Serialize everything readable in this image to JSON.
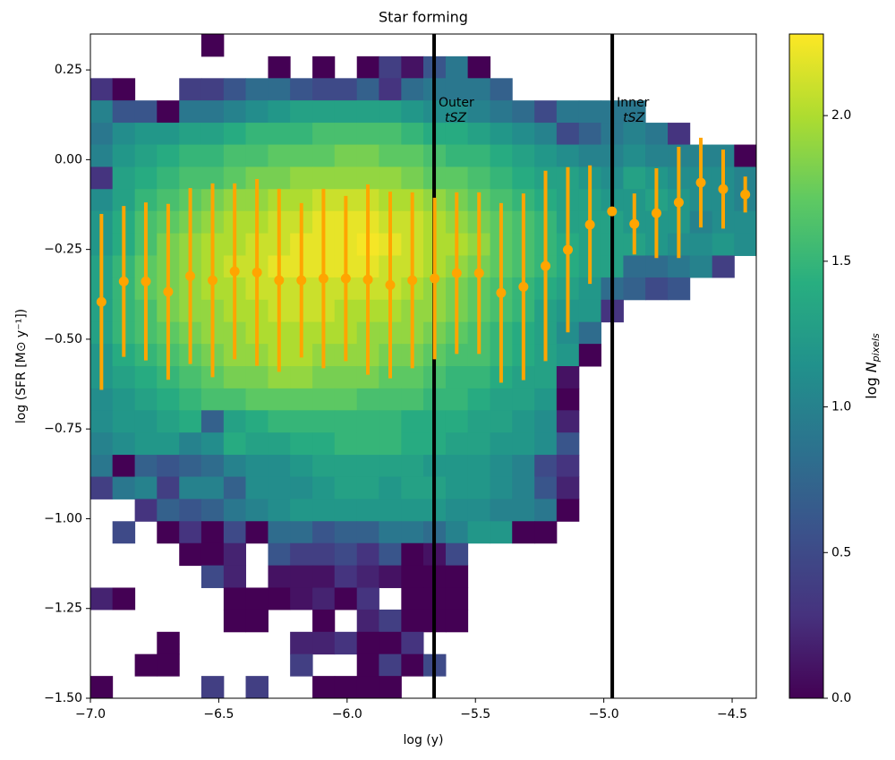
{
  "chart_data": {
    "type": "heatmap",
    "title": "Star forming",
    "xlabel": "log (y)",
    "ylabel": "log (SFR [M⊙ y⁻¹])",
    "xlim": [
      -7.0,
      -4.406
    ],
    "ylim": [
      -1.5,
      0.35
    ],
    "xticks": [
      {
        "value": -7.0,
        "label": "−7.0"
      },
      {
        "value": -6.5,
        "label": "−6.5"
      },
      {
        "value": -6.0,
        "label": "−6.0"
      },
      {
        "value": -5.5,
        "label": "−5.5"
      },
      {
        "value": -5.0,
        "label": "−5.0"
      },
      {
        "value": -4.5,
        "label": "−4.5"
      }
    ],
    "yticks": [
      {
        "value": 0.25,
        "label": "0.25"
      },
      {
        "value": 0,
        "label": "0.00"
      },
      {
        "value": -0.25,
        "label": "−0.25"
      },
      {
        "value": -0.5,
        "label": "−0.50"
      },
      {
        "value": -0.75,
        "label": "−0.75"
      },
      {
        "value": -1.0,
        "label": "−1.00"
      },
      {
        "value": -1.25,
        "label": "−1.25"
      },
      {
        "value": -1.5,
        "label": "−1.50"
      }
    ],
    "colormap": "viridis",
    "xbins": [
      -7.0,
      -6.914,
      -6.827,
      -6.741,
      -6.654,
      -6.568,
      -6.481,
      -6.395,
      -6.308,
      -6.222,
      -6.135,
      -6.049,
      -5.962,
      -5.876,
      -5.789,
      -5.703,
      -5.616,
      -5.53,
      -5.443,
      -5.357,
      -5.27,
      -5.184,
      -5.097,
      -5.011,
      -4.924,
      -4.838,
      -4.751,
      -4.665,
      -4.578,
      -4.492,
      -4.406
    ],
    "ybins": [
      0.35,
      0.288,
      0.227,
      0.165,
      0.103,
      0.042,
      -0.02,
      -0.082,
      -0.143,
      -0.205,
      -0.267,
      -0.328,
      -0.39,
      -0.452,
      -0.513,
      -0.575,
      -0.637,
      -0.698,
      -0.76,
      -0.822,
      -0.883,
      -0.945,
      -1.007,
      -1.068,
      -1.13,
      -1.192,
      -1.253,
      -1.315,
      -1.377,
      -1.438,
      -1.5
    ],
    "z": [
      [
        null,
        null,
        null,
        null,
        null,
        0,
        null,
        null,
        null,
        null,
        null,
        null,
        null,
        null,
        null,
        null,
        null,
        null,
        null,
        null,
        null,
        null,
        null,
        null,
        null,
        null,
        null,
        null,
        null,
        null
      ],
      [
        null,
        null,
        null,
        null,
        null,
        null,
        null,
        null,
        0,
        null,
        0,
        null,
        0,
        0.4,
        0.1,
        0.6,
        0.9,
        0,
        null,
        null,
        null,
        null,
        null,
        null,
        null,
        null,
        null,
        null,
        null,
        null
      ],
      [
        0.3,
        0,
        null,
        null,
        0.4,
        0.4,
        0.6,
        0.8,
        0.8,
        0.6,
        0.5,
        0.5,
        0.7,
        0.3,
        0.8,
        0.9,
        0.9,
        0.9,
        0.7,
        null,
        null,
        null,
        null,
        null,
        null,
        null,
        null,
        null,
        null,
        null
      ],
      [
        1.0,
        0.6,
        0.6,
        0,
        0.9,
        0.9,
        1.0,
        1.1,
        1.2,
        1.3,
        1.3,
        1.3,
        1.3,
        1.3,
        1.2,
        1.1,
        1.1,
        1.0,
        0.9,
        0.8,
        0.5,
        0.9,
        0.9,
        0.9,
        0.9,
        null,
        null,
        null,
        null,
        null
      ],
      [
        0.9,
        1.1,
        1.2,
        1.2,
        1.3,
        1.3,
        1.4,
        1.5,
        1.5,
        1.5,
        1.6,
        1.6,
        1.6,
        1.6,
        1.5,
        1.4,
        1.4,
        1.3,
        1.2,
        1.1,
        1.0,
        0.5,
        0.7,
        0.9,
        1.0,
        0.9,
        0.3,
        null,
        null,
        null
      ],
      [
        1.0,
        1.2,
        1.3,
        1.4,
        1.5,
        1.5,
        1.6,
        1.6,
        1.7,
        1.7,
        1.7,
        1.8,
        1.8,
        1.7,
        1.7,
        1.6,
        1.5,
        1.5,
        1.4,
        1.3,
        1.2,
        1.1,
        1.0,
        1.0,
        1.1,
        1.0,
        1.0,
        1.0,
        1.0,
        0.0
      ],
      [
        0.3,
        1.3,
        1.4,
        1.5,
        1.6,
        1.6,
        1.7,
        1.8,
        1.8,
        1.9,
        1.9,
        1.9,
        1.9,
        1.9,
        1.8,
        1.7,
        1.7,
        1.6,
        1.5,
        1.4,
        1.3,
        1.3,
        1.2,
        1.1,
        1.3,
        1.2,
        1.1,
        1.1,
        1.1,
        1.0
      ],
      [
        1.1,
        1.3,
        1.5,
        1.6,
        1.7,
        1.8,
        1.9,
        1.9,
        2.0,
        2.0,
        2.1,
        2.1,
        2.1,
        2.0,
        2.0,
        1.9,
        1.8,
        1.7,
        1.6,
        1.5,
        1.4,
        1.3,
        1.3,
        1.2,
        1.2,
        1.3,
        1.2,
        1.1,
        1.1,
        1.0
      ],
      [
        1.2,
        1.4,
        1.6,
        1.7,
        1.8,
        1.9,
        2.0,
        2.0,
        2.1,
        2.1,
        2.2,
        2.2,
        2.2,
        2.1,
        2.1,
        2.0,
        1.9,
        1.8,
        1.7,
        1.6,
        1.5,
        1.3,
        1.3,
        1.3,
        1.2,
        1.2,
        1.2,
        1.0,
        1.1,
        1.1
      ],
      [
        1.2,
        1.4,
        1.6,
        1.8,
        1.9,
        2.0,
        2.0,
        2.1,
        2.1,
        2.2,
        2.2,
        2.2,
        2.25,
        2.2,
        2.1,
        2.0,
        2.0,
        1.9,
        1.7,
        1.6,
        1.5,
        1.4,
        1.3,
        1.3,
        1.3,
        1.2,
        1.1,
        1.1,
        1.2,
        1.1
      ],
      [
        1.3,
        1.5,
        1.7,
        1.8,
        1.9,
        2.0,
        2.1,
        2.1,
        2.2,
        2.2,
        2.2,
        2.2,
        2.2,
        2.1,
        2.1,
        2.0,
        1.9,
        1.8,
        1.7,
        1.6,
        1.5,
        1.4,
        1.3,
        1.3,
        0.8,
        0.8,
        0.9,
        1.0,
        0.4,
        null
      ],
      [
        1.3,
        1.5,
        1.7,
        1.8,
        1.9,
        2.0,
        2.0,
        2.1,
        2.1,
        2.1,
        2.1,
        2.1,
        2.1,
        2.1,
        2.0,
        1.9,
        1.8,
        1.7,
        1.6,
        1.5,
        1.4,
        1.3,
        1.2,
        0.8,
        0.7,
        0.5,
        0.6,
        null,
        null,
        null
      ],
      [
        1.3,
        1.5,
        1.6,
        1.8,
        1.9,
        1.9,
        2.0,
        2.0,
        2.1,
        2.1,
        2.1,
        2.0,
        2.0,
        2.0,
        1.9,
        1.9,
        1.8,
        1.7,
        1.6,
        1.5,
        1.3,
        1.2,
        1.2,
        0.3,
        null,
        null,
        null,
        null,
        null,
        null
      ],
      [
        1.3,
        1.5,
        1.6,
        1.7,
        1.8,
        1.9,
        1.9,
        2.0,
        2.0,
        2.0,
        2.0,
        2.0,
        1.9,
        1.9,
        1.9,
        1.8,
        1.7,
        1.6,
        1.5,
        1.4,
        1.3,
        1.1,
        0.8,
        null,
        null,
        null,
        null,
        null,
        null,
        null
      ],
      [
        1.2,
        1.4,
        1.5,
        1.6,
        1.7,
        1.8,
        1.9,
        1.9,
        2.0,
        2.0,
        1.9,
        1.9,
        1.9,
        1.8,
        1.8,
        1.7,
        1.6,
        1.6,
        1.5,
        1.4,
        1.3,
        1.2,
        0.0,
        null,
        null,
        null,
        null,
        null,
        null,
        null
      ],
      [
        1.2,
        1.3,
        1.4,
        1.5,
        1.6,
        1.7,
        1.8,
        1.8,
        1.9,
        1.9,
        1.8,
        1.8,
        1.8,
        1.7,
        1.7,
        1.6,
        1.5,
        1.5,
        1.4,
        1.3,
        1.3,
        0.1,
        null,
        null,
        null,
        null,
        null,
        null,
        null,
        null
      ],
      [
        1.1,
        1.2,
        1.3,
        1.4,
        1.5,
        1.6,
        1.6,
        1.7,
        1.7,
        1.7,
        1.7,
        1.7,
        1.6,
        1.6,
        1.6,
        1.5,
        1.5,
        1.4,
        1.3,
        1.3,
        1.2,
        0.0,
        null,
        null,
        null,
        null,
        null,
        null,
        null,
        null
      ],
      [
        1.1,
        1.2,
        1.2,
        1.3,
        1.4,
        0.7,
        1.3,
        1.4,
        1.5,
        1.5,
        1.5,
        1.5,
        1.5,
        1.5,
        1.4,
        1.4,
        1.4,
        1.3,
        1.3,
        1.2,
        1.1,
        0.2,
        null,
        null,
        null,
        null,
        null,
        null,
        null,
        null
      ],
      [
        1.0,
        1.1,
        1.2,
        1.2,
        1.0,
        1.1,
        1.4,
        1.3,
        1.3,
        1.4,
        1.4,
        1.5,
        1.5,
        1.5,
        1.4,
        1.4,
        1.3,
        1.3,
        1.2,
        1.2,
        1.1,
        0.6,
        null,
        null,
        null,
        null,
        null,
        null,
        null,
        null
      ],
      [
        0.9,
        0.0,
        0.7,
        0.6,
        0.7,
        0.8,
        1.0,
        1.1,
        1.1,
        1.2,
        1.3,
        1.3,
        1.3,
        1.3,
        1.3,
        1.2,
        1.2,
        1.2,
        1.1,
        1.0,
        0.5,
        0.3,
        null,
        null,
        null,
        null,
        null,
        null,
        null,
        null
      ],
      [
        0.4,
        0.9,
        1.0,
        0.4,
        1.0,
        1.0,
        0.7,
        1.1,
        1.1,
        1.1,
        1.2,
        1.3,
        1.3,
        1.2,
        1.3,
        1.3,
        1.2,
        1.2,
        1.1,
        1.0,
        0.6,
        0.2,
        null,
        null,
        null,
        null,
        null,
        null,
        null,
        null
      ],
      [
        null,
        null,
        0.3,
        0.7,
        0.6,
        0.7,
        0.9,
        1.0,
        1.1,
        1.2,
        1.2,
        1.2,
        1.2,
        1.2,
        1.2,
        1.2,
        1.1,
        1.1,
        1.0,
        1.0,
        0.9,
        0.0,
        null,
        null,
        null,
        null,
        null,
        null,
        null,
        null
      ],
      [
        null,
        0.5,
        null,
        0.0,
        0.3,
        0.0,
        0.5,
        0.0,
        0.8,
        0.8,
        0.6,
        0.7,
        0.7,
        0.9,
        0.9,
        0.8,
        1.0,
        1.2,
        1.2,
        0.0,
        0.0,
        null,
        null,
        null,
        null,
        null,
        null,
        null,
        null,
        null
      ],
      [
        null,
        null,
        null,
        null,
        0.0,
        0.0,
        0.2,
        null,
        0.6,
        0.4,
        0.4,
        0.5,
        0.3,
        0.6,
        0.0,
        0.1,
        0.5,
        null,
        null,
        null,
        null,
        null,
        null,
        null,
        null,
        null,
        null,
        null,
        null,
        null
      ],
      [
        null,
        null,
        null,
        null,
        null,
        0.5,
        0.2,
        null,
        0.1,
        0.1,
        0.1,
        0.3,
        0.2,
        0.1,
        0.0,
        0.0,
        0.0,
        null,
        null,
        null,
        null,
        null,
        null,
        null,
        null,
        null,
        null,
        null,
        null,
        null
      ],
      [
        0.2,
        0.0,
        null,
        null,
        null,
        null,
        0.0,
        0.0,
        0.0,
        0.1,
        0.2,
        0.0,
        0.3,
        null,
        0.0,
        0.0,
        0.0,
        null,
        null,
        null,
        null,
        null,
        null,
        null,
        null,
        null,
        null,
        null,
        null,
        null
      ],
      [
        null,
        null,
        null,
        null,
        null,
        null,
        0.0,
        0.0,
        null,
        null,
        0.0,
        null,
        0.2,
        0.4,
        0.0,
        0.0,
        0.0,
        null,
        null,
        null,
        null,
        null,
        null,
        null,
        null,
        null,
        null,
        null,
        null,
        null
      ],
      [
        null,
        null,
        null,
        0.0,
        null,
        null,
        null,
        null,
        null,
        0.2,
        0.2,
        0.3,
        0.0,
        0.0,
        0.3,
        null,
        null,
        null,
        null,
        null,
        null,
        null,
        null,
        null,
        null,
        null,
        null,
        null,
        null,
        null
      ],
      [
        null,
        null,
        0.0,
        0.0,
        null,
        null,
        null,
        null,
        null,
        0.4,
        null,
        null,
        0.0,
        0.4,
        0.0,
        0.5,
        null,
        null,
        null,
        null,
        null,
        null,
        null,
        null,
        null,
        null,
        null,
        null,
        null,
        null
      ],
      [
        0.0,
        null,
        null,
        null,
        null,
        0.4,
        null,
        0.4,
        null,
        null,
        0.0,
        0.0,
        0.0,
        0.0,
        null,
        null,
        null,
        null,
        null,
        null,
        null,
        null,
        null,
        null,
        null,
        null,
        null,
        null,
        null,
        null
      ]
    ],
    "points": {
      "color": "#ffa500",
      "x": [
        -6.957,
        -6.87,
        -6.784,
        -6.697,
        -6.611,
        -6.524,
        -6.438,
        -6.351,
        -6.265,
        -6.178,
        -6.092,
        -6.005,
        -5.919,
        -5.832,
        -5.746,
        -5.659,
        -5.573,
        -5.486,
        -5.4,
        -5.313,
        -5.227,
        -5.14,
        -5.054,
        -4.968,
        -4.881,
        -4.795,
        -4.708,
        -4.622,
        -4.535,
        -4.449
      ],
      "values": [
        -0.396,
        -0.339,
        -0.339,
        -0.368,
        -0.324,
        -0.336,
        -0.311,
        -0.314,
        -0.336,
        -0.336,
        -0.331,
        -0.331,
        -0.334,
        -0.349,
        -0.336,
        -0.331,
        -0.316,
        -0.316,
        -0.371,
        -0.354,
        -0.296,
        -0.251,
        -0.181,
        -0.144,
        -0.179,
        -0.149,
        -0.119,
        -0.064,
        -0.082,
        -0.097
      ],
      "errors": [
        0.245,
        0.21,
        0.22,
        0.245,
        0.245,
        0.27,
        0.245,
        0.26,
        0.255,
        0.215,
        0.25,
        0.23,
        0.265,
        0.26,
        0.245,
        0.225,
        0.225,
        0.225,
        0.25,
        0.26,
        0.265,
        0.23,
        0.165,
        0,
        0.085,
        0.125,
        0.155,
        0.125,
        0.11,
        0.05
      ]
    },
    "vlines": [
      {
        "x": -5.661,
        "label": "Outer",
        "sublabel": "tSZ"
      },
      {
        "x": -4.967,
        "label": "Inner",
        "sublabel": "tSZ"
      }
    ],
    "colorbar": {
      "label": "log",
      "label_symbol": "N",
      "label_sub": "pixels",
      "clim": [
        0,
        2.28
      ],
      "ticks": [
        {
          "value": 0,
          "label": "0.0"
        },
        0.5,
        {
          "value": 1,
          "label": "1.0"
        },
        1.5,
        {
          "value": 2,
          "label": "2.0"
        }
      ]
    }
  }
}
